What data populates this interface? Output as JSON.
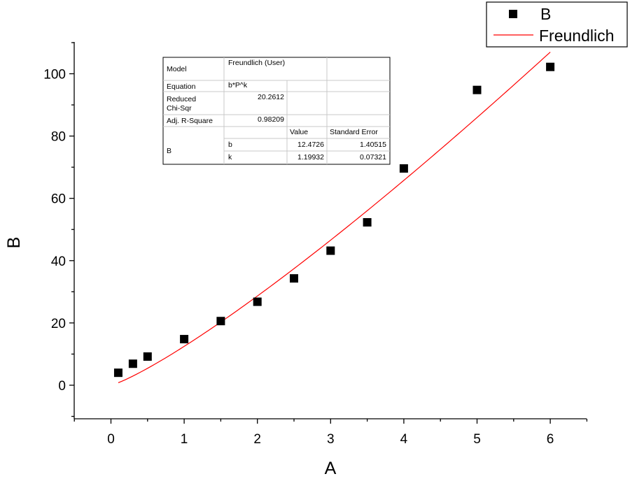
{
  "chart_data": {
    "type": "scatter",
    "xlabel": "A",
    "ylabel": "B",
    "xlim": [
      -0.5,
      6.5
    ],
    "ylim": [
      -10,
      110
    ],
    "xticks": [
      "0",
      "1",
      "2",
      "3",
      "4",
      "5",
      "6"
    ],
    "yticks": [
      "0",
      "20",
      "40",
      "60",
      "80",
      "100"
    ],
    "grid": false,
    "legend_position": "top-right",
    "series": [
      {
        "name": "B",
        "kind": "scatter",
        "marker": "square",
        "color": "#000000",
        "x": [
          0.1,
          0.3,
          0.5,
          1.0,
          1.5,
          2.0,
          2.5,
          3.0,
          3.5,
          4.0,
          5.0,
          6.0
        ],
        "y": [
          4.0,
          6.9,
          9.2,
          14.8,
          20.6,
          26.8,
          34.3,
          43.2,
          52.3,
          69.6,
          94.8,
          102.2
        ]
      },
      {
        "name": "Freundlich",
        "kind": "line",
        "color": "#ff0000",
        "equation": "b*P^k",
        "params": {
          "b": 12.4726,
          "k": 1.19932
        },
        "x_range": [
          0.1,
          6.0
        ]
      }
    ]
  },
  "fit_table": {
    "model_label": "Model",
    "model_value": "Freundlich (User)",
    "equation_label": "Equation",
    "equation_value": "b*P^k",
    "chisq_label_1": "Reduced",
    "chisq_label_2": "Chi-Sqr",
    "chisq_value": "20.2612",
    "r2_label": "Adj. R-Square",
    "r2_value": "0.98209",
    "value_header": "Value",
    "se_header": "Standard Error",
    "param_group": "B",
    "rows": [
      {
        "param": "b",
        "value": "12.4726",
        "se": "1.40515"
      },
      {
        "param": "k",
        "value": "1.19932",
        "se": "0.07321"
      }
    ]
  }
}
